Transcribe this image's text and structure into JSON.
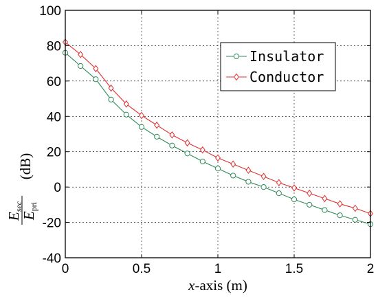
{
  "chart_data": {
    "type": "line",
    "xlabel_var": "x",
    "xlabel_rest": "-axis (m)",
    "ylabel_num": "E",
    "ylabel_num_sub": "sec",
    "ylabel_den": "E",
    "ylabel_den_sub": "pri",
    "ylabel_unit": "(dB)",
    "xlim": [
      0,
      2
    ],
    "ylim": [
      -40,
      100
    ],
    "xticks": [
      0,
      0.5,
      1,
      1.5,
      2
    ],
    "xtick_labels": [
      "0",
      "0.5",
      "1",
      "1.5",
      "2"
    ],
    "yticks": [
      -40,
      -20,
      0,
      20,
      40,
      60,
      80,
      100
    ],
    "ytick_labels": [
      "-40",
      "-20",
      "0",
      "20",
      "40",
      "60",
      "80",
      "100"
    ],
    "grid": true,
    "legend_position": "top-right",
    "x": [
      0,
      0.1,
      0.2,
      0.3,
      0.4,
      0.5,
      0.6,
      0.7,
      0.8,
      0.9,
      1.0,
      1.1,
      1.2,
      1.3,
      1.4,
      1.5,
      1.6,
      1.7,
      1.8,
      1.9,
      2.0
    ],
    "series": [
      {
        "name": "Insulator",
        "color": "#2e8b57",
        "marker": "circle",
        "values": [
          76,
          68.5,
          61,
          49.5,
          41,
          34,
          28.5,
          23.5,
          19,
          14.5,
          10.5,
          6.5,
          3,
          0,
          -3.5,
          -7,
          -10,
          -13,
          -16,
          -18.5,
          -21
        ]
      },
      {
        "name": "Conductor",
        "color": "#e03030",
        "marker": "diamond",
        "values": [
          82,
          75,
          67,
          56,
          47,
          40.5,
          35,
          29.5,
          25,
          21,
          16.5,
          13,
          9.5,
          6,
          2.5,
          -0.5,
          -3.5,
          -6.5,
          -9.5,
          -12,
          -15
        ]
      }
    ]
  }
}
